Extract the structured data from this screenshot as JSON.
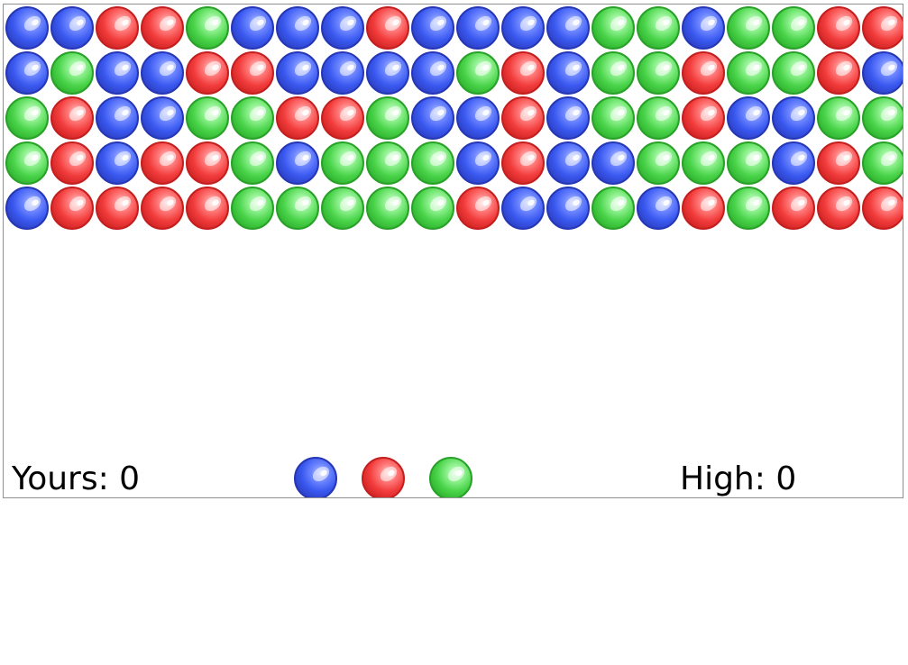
{
  "score": {
    "yours_label": "Yours: 0",
    "high_label": "High: 0"
  },
  "colors": {
    "blue": "#3a59f0",
    "red": "#f23c3c",
    "green": "#4ad44a"
  },
  "grid": {
    "rows": [
      [
        "blue",
        "blue",
        "red",
        "red",
        "green",
        "blue",
        "blue",
        "blue",
        "red",
        "blue",
        "blue",
        "blue",
        "blue",
        "green",
        "green",
        "blue",
        "green",
        "green",
        "red",
        "red"
      ],
      [
        "blue",
        "green",
        "blue",
        "blue",
        "red",
        "red",
        "blue",
        "blue",
        "blue",
        "blue",
        "green",
        "red",
        "blue",
        "green",
        "green",
        "red",
        "green",
        "green",
        "red",
        "blue"
      ],
      [
        "green",
        "red",
        "blue",
        "blue",
        "green",
        "green",
        "red",
        "red",
        "green",
        "blue",
        "blue",
        "red",
        "blue",
        "green",
        "green",
        "red",
        "blue",
        "blue",
        "green",
        "green"
      ],
      [
        "green",
        "red",
        "blue",
        "red",
        "red",
        "green",
        "blue",
        "green",
        "green",
        "green",
        "blue",
        "red",
        "blue",
        "blue",
        "green",
        "green",
        "green",
        "blue",
        "red",
        "green"
      ],
      [
        "blue",
        "red",
        "red",
        "red",
        "red",
        "green",
        "green",
        "green",
        "green",
        "green",
        "red",
        "blue",
        "blue",
        "green",
        "blue",
        "red",
        "green",
        "red",
        "red",
        "red"
      ]
    ]
  },
  "picker": {
    "options": [
      "blue",
      "red",
      "green"
    ]
  }
}
